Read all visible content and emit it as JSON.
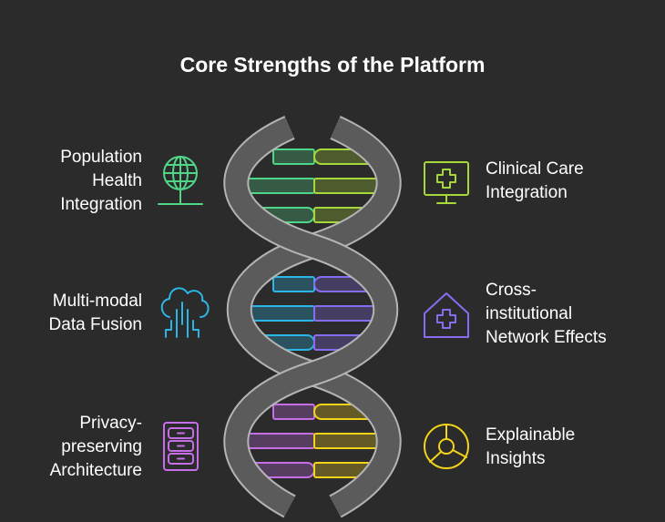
{
  "title": "Core Strengths of the Platform",
  "left": [
    {
      "label": "Population Health Integration",
      "lines": [
        "Population",
        "Health",
        "Integration"
      ],
      "icon": "globe-icon",
      "color": "#4fd787"
    },
    {
      "label": "Multi-modal Data Fusion",
      "lines": [
        "Multi-modal",
        "Data Fusion"
      ],
      "icon": "cloud-circuit-icon",
      "color": "#2bb6e6"
    },
    {
      "label": "Privacy-preserving Architecture",
      "lines": [
        "Privacy-",
        "preserving",
        "Architecture"
      ],
      "icon": "filing-cabinet-icon",
      "color": "#c56ee8"
    }
  ],
  "right": [
    {
      "label": "Clinical Care Integration",
      "lines": [
        "Clinical Care",
        "Integration"
      ],
      "icon": "medical-monitor-icon",
      "color": "#a6d83a"
    },
    {
      "label": "Cross-institutional Network Effects",
      "lines": [
        "Cross-",
        "institutional",
        "Network Effects"
      ],
      "icon": "house-medical-icon",
      "color": "#8a6cf0"
    },
    {
      "label": "Explainable Insights",
      "lines": [
        "Explainable",
        "Insights"
      ],
      "icon": "pie-chart-icon",
      "color": "#f3d41a"
    }
  ]
}
